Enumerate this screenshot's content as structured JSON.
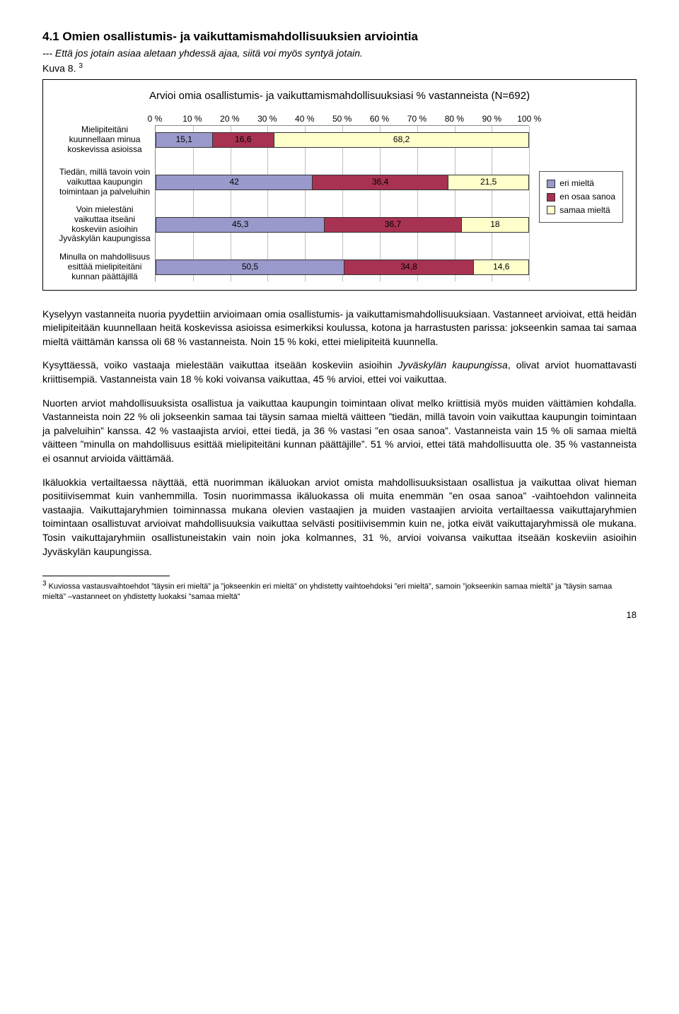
{
  "section_title": "4.1 Omien osallistumis- ja vaikuttamismahdollisuuksien arviointia",
  "subtitle": "--- Että jos jotain asiaa aletaan yhdessä ajaa, siitä voi myös syntyä jotain.",
  "kuva_label": "Kuva 8.",
  "fn_ref_marker": "3",
  "chart": {
    "title": "Arvioi omia osallistumis- ja vaikuttamismahdollisuuksiasi % vastanneista (N=692)",
    "x_ticks": [
      "0 %",
      "10 %",
      "20 %",
      "30 %",
      "40 %",
      "50 %",
      "60 %",
      "70 %",
      "80 %",
      "90 %",
      "100 %"
    ],
    "colors": {
      "eri": "#9999cc",
      "eos": "#a83252",
      "samaa": "#ffffcc",
      "grid": "#bfbfbf",
      "border": "#333333",
      "text": "#000000"
    },
    "legend": [
      {
        "label": "eri mieltä",
        "color_key": "eri"
      },
      {
        "label": "en osaa sanoa",
        "color_key": "eos"
      },
      {
        "label": "samaa mieltä",
        "color_key": "samaa"
      }
    ],
    "rows": [
      {
        "label": "Mielipiteitäni kuunnellaan minua koskevissa asioissa",
        "segments": [
          {
            "value": 15.1,
            "display": "15,1",
            "color_key": "eri"
          },
          {
            "value": 16.6,
            "display": "16,6",
            "color_key": "eos"
          },
          {
            "value": 68.2,
            "display": "68,2",
            "color_key": "samaa"
          }
        ]
      },
      {
        "label": "Tiedän, millä tavoin voin vaikuttaa kaupungin toimintaan ja palveluihin",
        "segments": [
          {
            "value": 42,
            "display": "42",
            "color_key": "eri"
          },
          {
            "value": 36.4,
            "display": "36,4",
            "color_key": "eos"
          },
          {
            "value": 21.5,
            "display": "21,5",
            "color_key": "samaa"
          }
        ]
      },
      {
        "label": "Voin mielestäni vaikuttaa itseäni koskeviin asioihin Jyväskylän kaupungissa",
        "segments": [
          {
            "value": 45.3,
            "display": "45,3",
            "color_key": "eri"
          },
          {
            "value": 36.7,
            "display": "36,7",
            "color_key": "eos"
          },
          {
            "value": 18,
            "display": "18",
            "color_key": "samaa"
          }
        ]
      },
      {
        "label": "Minulla on mahdollisuus esittää mielipiteitäni kunnan päättäjillä",
        "segments": [
          {
            "value": 50.5,
            "display": "50,5",
            "color_key": "eri"
          },
          {
            "value": 34.8,
            "display": "34,8",
            "color_key": "eos"
          },
          {
            "value": 14.6,
            "display": "14,6",
            "color_key": "samaa"
          }
        ]
      }
    ]
  },
  "paragraphs": [
    "Kyselyyn vastanneita nuoria pyydettiin arvioimaan omia osallistumis- ja vaikuttamismahdollisuuksiaan. Vastanneet arvioivat, että heidän mielipiteitään kuunnellaan heitä koskevissa asioissa esimerkiksi koulussa, kotona ja harrastusten parissa: jokseenkin samaa tai samaa mieltä väittämän kanssa oli 68 % vastanneista. Noin 15 % koki, ettei mielipiteitä kuunnella.",
    "Kysyttäessä, voiko vastaaja mielestään vaikuttaa itseään koskeviin asioihin Jyväskylän kaupungissa, olivat arviot huomattavasti kriittisempiä. Vastanneista vain 18 % koki voivansa vaikuttaa, 45 % arvioi, ettei voi vaikuttaa.",
    "Nuorten arviot mahdollisuuksista osallistua ja vaikuttaa kaupungin toimintaan olivat melko kriittisiä myös muiden väittämien kohdalla. Vastanneista noin 22 % oli jokseenkin samaa tai täysin samaa mieltä väitteen ”tiedän, millä tavoin voin vaikuttaa kaupungin toimintaan ja palveluihin” kanssa. 42 % vastaajista arvioi, ettei tiedä, ja 36 % vastasi ”en osaa sanoa”. Vastanneista vain 15 % oli samaa mieltä väitteen ”minulla on mahdollisuus esittää mielipiteitäni kunnan päättäjille”. 51 % arvioi, ettei tätä mahdollisuutta ole. 35 % vastanneista ei osannut arvioida väittämää.",
    "Ikäluokkia vertailtaessa näyttää, että nuorimman ikäluokan arviot omista mahdollisuuksistaan osallistua ja vaikuttaa olivat hieman positiivisemmat kuin vanhemmilla. Tosin nuorimmassa ikäluokassa oli muita enemmän ”en osaa sanoa” -vaihtoehdon valinneita vastaajia. Vaikuttajaryhmien toiminnassa mukana olevien vastaajien ja muiden vastaajien arvioita vertailtaessa vaikuttajaryhmien toimintaan osallistuvat arvioivat mahdollisuuksia vaikuttaa selvästi positiivisemmin kuin ne, jotka eivät vaikuttajaryhmissä ole mukana. Tosin vaikuttajaryhmiin osallistuneistakin vain noin joka kolmannes, 31 %, arvioi voivansa vaikuttaa itseään koskeviin asioihin Jyväskylän kaupungissa."
  ],
  "footnote_marker": "3",
  "footnote_text": "Kuviossa vastausvaihtoehdot ”täysin eri mieltä” ja ”jokseenkin eri mieltä” on yhdistetty vaihtoehdoksi ”eri mieltä”, samoin ”jokseenkin samaa mieltä” ja ”täysin samaa mieltä” –vastanneet on yhdistetty luokaksi ”samaa mieltä”",
  "page_number": "18"
}
